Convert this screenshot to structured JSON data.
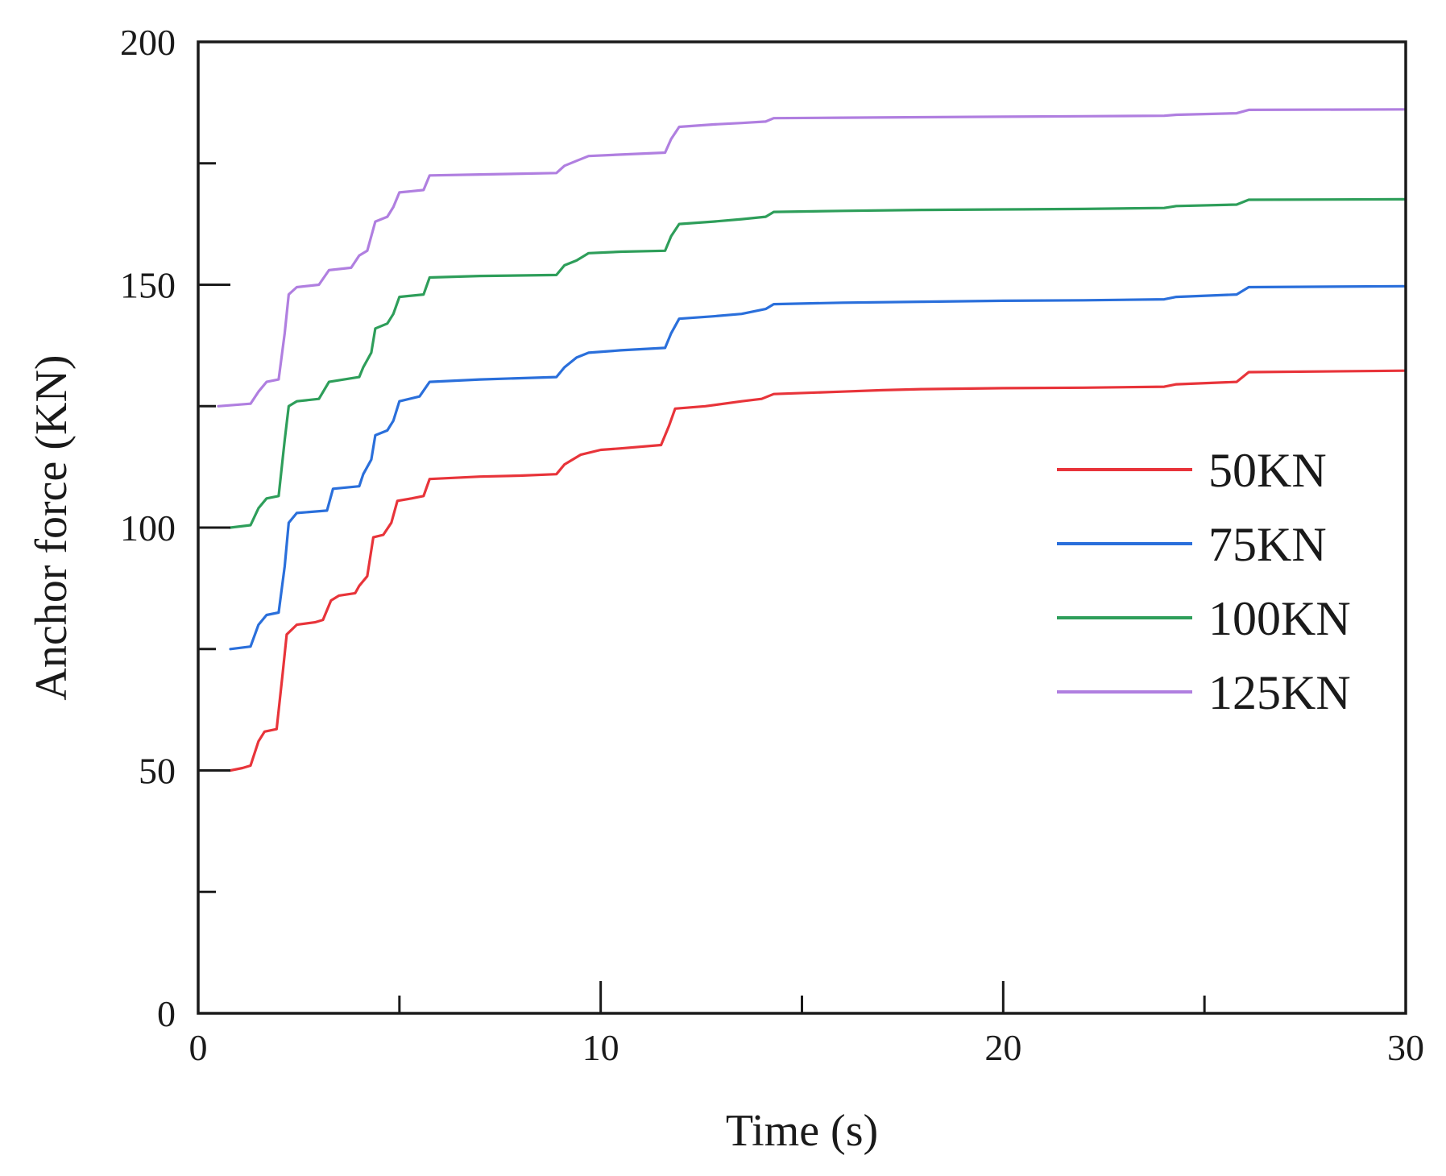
{
  "chart_data": {
    "type": "line",
    "title": "",
    "xlabel": "Time (s)",
    "ylabel": "Anchor force (KN)",
    "xlim": [
      0,
      30
    ],
    "ylim": [
      0,
      200
    ],
    "x_major_ticks": [
      0,
      10,
      20,
      30
    ],
    "x_minor_ticks": [
      5,
      15,
      25
    ],
    "y_major_ticks": [
      0,
      50,
      100,
      150,
      200
    ],
    "y_minor_ticks": [
      25,
      75,
      125,
      175
    ],
    "grid": false,
    "legend_position": "right-middle",
    "series": [
      {
        "name": "50KN",
        "color": "#e8343a",
        "points": [
          [
            0.8,
            50
          ],
          [
            1.1,
            50.5
          ],
          [
            1.3,
            51
          ],
          [
            1.5,
            56
          ],
          [
            1.65,
            58
          ],
          [
            1.95,
            58.5
          ],
          [
            2.1,
            70
          ],
          [
            2.2,
            78
          ],
          [
            2.45,
            80
          ],
          [
            2.9,
            80.5
          ],
          [
            3.1,
            81
          ],
          [
            3.3,
            85
          ],
          [
            3.5,
            86
          ],
          [
            3.9,
            86.5
          ],
          [
            4.0,
            88
          ],
          [
            4.2,
            90
          ],
          [
            4.35,
            98
          ],
          [
            4.6,
            98.5
          ],
          [
            4.8,
            101
          ],
          [
            4.95,
            105.5
          ],
          [
            5.3,
            106
          ],
          [
            5.6,
            106.5
          ],
          [
            5.75,
            110
          ],
          [
            7.0,
            110.5
          ],
          [
            8.0,
            110.7
          ],
          [
            8.9,
            111
          ],
          [
            9.1,
            113
          ],
          [
            9.5,
            115
          ],
          [
            10.0,
            116
          ],
          [
            10.5,
            116.3
          ],
          [
            11.5,
            117
          ],
          [
            11.7,
            121
          ],
          [
            11.85,
            124.5
          ],
          [
            12.6,
            125
          ],
          [
            13.5,
            126
          ],
          [
            14.0,
            126.5
          ],
          [
            14.3,
            127.5
          ],
          [
            16.0,
            128
          ],
          [
            17.0,
            128.3
          ],
          [
            18.0,
            128.5
          ],
          [
            20.0,
            128.7
          ],
          [
            22.0,
            128.8
          ],
          [
            24.0,
            129
          ],
          [
            24.3,
            129.5
          ],
          [
            25.8,
            130
          ],
          [
            26.1,
            132
          ],
          [
            30.0,
            132.3
          ]
        ]
      },
      {
        "name": "75KN",
        "color": "#2a6fdb",
        "points": [
          [
            0.8,
            75
          ],
          [
            1.3,
            75.5
          ],
          [
            1.5,
            80
          ],
          [
            1.7,
            82
          ],
          [
            2.0,
            82.5
          ],
          [
            2.15,
            92
          ],
          [
            2.25,
            101
          ],
          [
            2.45,
            103
          ],
          [
            3.2,
            103.5
          ],
          [
            3.35,
            108
          ],
          [
            4.0,
            108.5
          ],
          [
            4.1,
            111
          ],
          [
            4.3,
            114
          ],
          [
            4.4,
            119
          ],
          [
            4.7,
            120
          ],
          [
            4.85,
            122
          ],
          [
            5.0,
            126
          ],
          [
            5.5,
            127
          ],
          [
            5.75,
            130
          ],
          [
            7.0,
            130.5
          ],
          [
            8.9,
            131
          ],
          [
            9.1,
            133
          ],
          [
            9.4,
            135
          ],
          [
            9.7,
            136
          ],
          [
            10.5,
            136.5
          ],
          [
            11.6,
            137
          ],
          [
            11.75,
            140
          ],
          [
            11.95,
            143
          ],
          [
            12.8,
            143.5
          ],
          [
            13.5,
            144
          ],
          [
            14.1,
            145
          ],
          [
            14.3,
            146
          ],
          [
            16.0,
            146.3
          ],
          [
            18.0,
            146.5
          ],
          [
            20.0,
            146.7
          ],
          [
            22.0,
            146.8
          ],
          [
            24.0,
            147
          ],
          [
            24.3,
            147.5
          ],
          [
            25.8,
            148
          ],
          [
            26.1,
            149.5
          ],
          [
            30.0,
            149.7
          ]
        ]
      },
      {
        "name": "100KN",
        "color": "#2e9e5a",
        "points": [
          [
            0.8,
            100
          ],
          [
            1.3,
            100.5
          ],
          [
            1.5,
            104
          ],
          [
            1.7,
            106
          ],
          [
            2.0,
            106.5
          ],
          [
            2.15,
            118
          ],
          [
            2.25,
            125
          ],
          [
            2.45,
            126
          ],
          [
            3.0,
            126.5
          ],
          [
            3.25,
            130
          ],
          [
            4.0,
            131
          ],
          [
            4.1,
            133
          ],
          [
            4.3,
            136
          ],
          [
            4.4,
            141
          ],
          [
            4.7,
            142
          ],
          [
            4.85,
            144
          ],
          [
            5.0,
            147.5
          ],
          [
            5.6,
            148
          ],
          [
            5.75,
            151.5
          ],
          [
            7.0,
            151.8
          ],
          [
            8.9,
            152
          ],
          [
            9.1,
            154
          ],
          [
            9.4,
            155
          ],
          [
            9.7,
            156.5
          ],
          [
            10.5,
            156.8
          ],
          [
            11.6,
            157
          ],
          [
            11.75,
            160
          ],
          [
            11.95,
            162.5
          ],
          [
            12.8,
            163
          ],
          [
            13.5,
            163.5
          ],
          [
            14.1,
            164
          ],
          [
            14.3,
            165
          ],
          [
            16.0,
            165.2
          ],
          [
            18.0,
            165.4
          ],
          [
            20.0,
            165.5
          ],
          [
            22.0,
            165.6
          ],
          [
            24.0,
            165.8
          ],
          [
            24.3,
            166.2
          ],
          [
            25.8,
            166.5
          ],
          [
            26.1,
            167.5
          ],
          [
            30.0,
            167.6
          ]
        ]
      },
      {
        "name": "125KN",
        "color": "#b07fe0",
        "points": [
          [
            0.5,
            125
          ],
          [
            1.3,
            125.5
          ],
          [
            1.5,
            128
          ],
          [
            1.7,
            130
          ],
          [
            2.0,
            130.5
          ],
          [
            2.15,
            140
          ],
          [
            2.25,
            148
          ],
          [
            2.45,
            149.5
          ],
          [
            3.0,
            150
          ],
          [
            3.25,
            153
          ],
          [
            3.8,
            153.5
          ],
          [
            4.0,
            156
          ],
          [
            4.2,
            157
          ],
          [
            4.4,
            163
          ],
          [
            4.7,
            164
          ],
          [
            4.85,
            166
          ],
          [
            5.0,
            169
          ],
          [
            5.6,
            169.5
          ],
          [
            5.75,
            172.5
          ],
          [
            7.0,
            172.7
          ],
          [
            8.9,
            173
          ],
          [
            9.1,
            174.5
          ],
          [
            9.4,
            175.5
          ],
          [
            9.7,
            176.5
          ],
          [
            10.5,
            176.8
          ],
          [
            11.6,
            177.2
          ],
          [
            11.75,
            180
          ],
          [
            11.95,
            182.5
          ],
          [
            12.8,
            183
          ],
          [
            13.5,
            183.3
          ],
          [
            14.1,
            183.6
          ],
          [
            14.3,
            184.3
          ],
          [
            16.0,
            184.4
          ],
          [
            18.0,
            184.5
          ],
          [
            20.0,
            184.6
          ],
          [
            22.0,
            184.7
          ],
          [
            24.0,
            184.8
          ],
          [
            24.3,
            185
          ],
          [
            25.8,
            185.3
          ],
          [
            26.1,
            186
          ],
          [
            30.0,
            186.1
          ]
        ]
      }
    ]
  }
}
